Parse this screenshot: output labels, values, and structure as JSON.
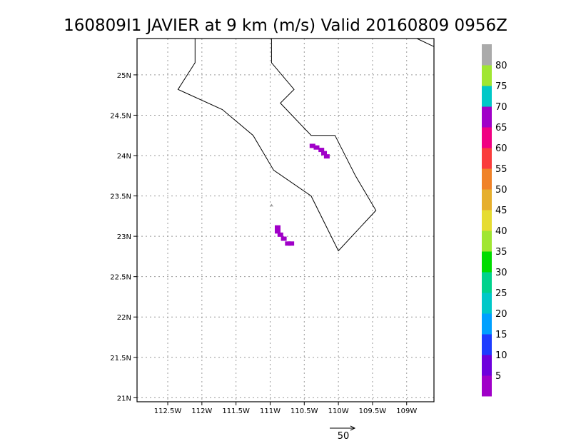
{
  "chart_data": {
    "type": "heatmap",
    "title": "160809I1 JAVIER at 9 km (m/s) Valid 20160809 0956Z",
    "xlim": [
      -112.95,
      -108.6
    ],
    "ylim": [
      20.95,
      25.45
    ],
    "x_ticks": [
      {
        "value": -112.5,
        "label": "112.5W"
      },
      {
        "value": -112.0,
        "label": "112W"
      },
      {
        "value": -111.5,
        "label": "111.5W"
      },
      {
        "value": -111.0,
        "label": "111W"
      },
      {
        "value": -110.5,
        "label": "110.5W"
      },
      {
        "value": -110.0,
        "label": "110W"
      },
      {
        "value": -109.5,
        "label": "109.5W"
      },
      {
        "value": -109.0,
        "label": "109W"
      }
    ],
    "y_ticks": [
      {
        "value": 21.0,
        "label": "21N"
      },
      {
        "value": 21.5,
        "label": "21.5N"
      },
      {
        "value": 22.0,
        "label": "22N"
      },
      {
        "value": 22.5,
        "label": "22.5N"
      },
      {
        "value": 23.0,
        "label": "23N"
      },
      {
        "value": 23.5,
        "label": "23.5N"
      },
      {
        "value": 24.0,
        "label": "24N"
      },
      {
        "value": 24.5,
        "label": "24.5N"
      },
      {
        "value": 25.0,
        "label": "25N"
      }
    ],
    "grid": true,
    "colorbar": {
      "labels": [
        "5",
        "10",
        "15",
        "20",
        "25",
        "30",
        "35",
        "40",
        "45",
        "50",
        "55",
        "60",
        "65",
        "70",
        "75",
        "80"
      ],
      "colors": [
        "#a000c8",
        "#6e00dc",
        "#1e3cff",
        "#00a0ff",
        "#00c8c8",
        "#00d28c",
        "#00dc00",
        "#a0e632",
        "#e6dc32",
        "#e6af2d",
        "#f08228",
        "#fa3c3c",
        "#f00082",
        "#a000c8",
        "#00c8c8",
        "#a0e632",
        "#aaaaaa"
      ]
    },
    "coastlines": [
      [
        [
          -112.1,
          25.45
        ],
        [
          -112.1,
          25.15
        ],
        [
          -112.35,
          24.82
        ],
        [
          -111.7,
          24.57
        ],
        [
          -111.25,
          24.25
        ],
        [
          -110.95,
          23.82
        ],
        [
          -110.4,
          23.5
        ],
        [
          -110.0,
          22.82
        ],
        [
          -109.45,
          23.32
        ],
        [
          -109.75,
          23.75
        ],
        [
          -110.05,
          24.25
        ],
        [
          -110.4,
          24.25
        ],
        [
          -110.85,
          24.65
        ],
        [
          -110.65,
          24.82
        ],
        [
          -110.98,
          25.15
        ],
        [
          -110.98,
          25.45
        ]
      ],
      [
        [
          -108.85,
          25.45
        ],
        [
          -108.6,
          25.35
        ]
      ]
    ],
    "wind_cells": [
      {
        "lon": -110.38,
        "lat": 24.12,
        "speed": 5
      },
      {
        "lon": -110.32,
        "lat": 24.1,
        "speed": 5
      },
      {
        "lon": -110.25,
        "lat": 24.07,
        "speed": 5
      },
      {
        "lon": -110.21,
        "lat": 24.03,
        "speed": 5
      },
      {
        "lon": -110.17,
        "lat": 23.99,
        "speed": 5
      },
      {
        "lon": -110.89,
        "lat": 23.11,
        "speed": 5
      },
      {
        "lon": -110.89,
        "lat": 23.06,
        "speed": 5
      },
      {
        "lon": -110.85,
        "lat": 23.02,
        "speed": 5
      },
      {
        "lon": -110.8,
        "lat": 22.97,
        "speed": 5
      },
      {
        "lon": -110.74,
        "lat": 22.91,
        "speed": 5
      },
      {
        "lon": -110.69,
        "lat": 22.91,
        "speed": 5
      }
    ],
    "wind_vectors": [
      {
        "lon": -110.98,
        "lat": 23.37,
        "u": 0,
        "v": 4
      }
    ],
    "reference_vector": {
      "label": "50",
      "value": 50
    }
  }
}
